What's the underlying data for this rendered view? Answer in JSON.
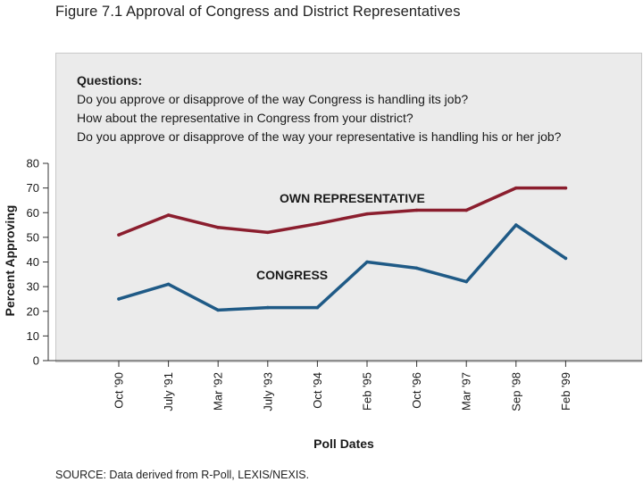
{
  "figure": {
    "title": "Figure 7.1  Approval of Congress and District Representatives",
    "source": "SOURCE:  Data derived from R-Poll, LEXIS/NEXIS."
  },
  "questions": {
    "heading": "Questions:",
    "lines": [
      "Do you approve or disapprove of the way Congress is handling its job?",
      "How about the representative in Congress from your district?",
      "Do you approve or disapprove of the way your representative is handling his or her job?"
    ]
  },
  "chart_data": {
    "type": "line",
    "title": "Approval of Congress and District Representatives",
    "xlabel": "Poll Dates",
    "ylabel": "Percent Approving",
    "categories": [
      "Oct '90",
      "July '91",
      "Mar '92",
      "July '93",
      "Oct '94",
      "Feb '95",
      "Oct '96",
      "Mar '97",
      "Sep '98",
      "Feb '99"
    ],
    "ylim": [
      0,
      80
    ],
    "yticks": [
      0,
      10,
      20,
      30,
      40,
      50,
      60,
      70,
      80
    ],
    "grid": false,
    "series": [
      {
        "name": "OWN REPRESENTATIVE",
        "color": "#8b1e2e",
        "values": [
          51,
          59,
          54,
          52,
          55.5,
          59.5,
          61,
          61,
          70,
          70
        ]
      },
      {
        "name": "CONGRESS",
        "color": "#1f5a86",
        "values": [
          25,
          31,
          20.5,
          21.5,
          21.5,
          40,
          37.5,
          32,
          55,
          41.5
        ]
      }
    ]
  }
}
